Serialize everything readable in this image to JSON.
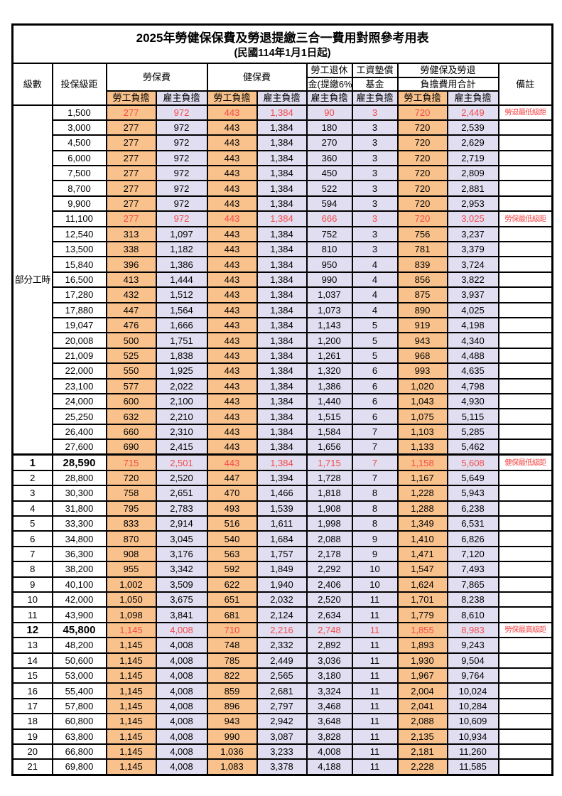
{
  "title": "2025年勞健保保費及勞退提繳三合一費用對照參考用表",
  "subtitle": "(民國114年1月1日起)",
  "colors": {
    "employee_bg": "#F9C28C",
    "employer_bg": "#E0DEF0",
    "highlight_red": "#F64A4A",
    "border": "#000000"
  },
  "header": {
    "level": "級數",
    "bracket": "投保級距",
    "labor_insurance": "勞保費",
    "health_insurance": "健保費",
    "pension_line1": "勞工退休",
    "pension_line2": "金(提繳6%)",
    "wage_fund_line1": "工資墊償",
    "wage_fund_line2": "基金",
    "total_line1": "勞健保及勞退",
    "total_line2": "負擔費用合計",
    "remark": "備註",
    "employee": "勞工負擔",
    "employer": "雇主負擔"
  },
  "part_time_label": "部分工時",
  "rows": [
    {
      "level": "",
      "bracket": "1,500",
      "labor_emp": "277",
      "labor_er": "972",
      "health_emp": "443",
      "health_er": "1,384",
      "pension_er": "90",
      "fund_er": "3",
      "total_emp": "720",
      "total_er": "2,449",
      "remark": "勞退最低級距",
      "red": true
    },
    {
      "level": "",
      "bracket": "3,000",
      "labor_emp": "277",
      "labor_er": "972",
      "health_emp": "443",
      "health_er": "1,384",
      "pension_er": "180",
      "fund_er": "3",
      "total_emp": "720",
      "total_er": "2,539",
      "remark": ""
    },
    {
      "level": "",
      "bracket": "4,500",
      "labor_emp": "277",
      "labor_er": "972",
      "health_emp": "443",
      "health_er": "1,384",
      "pension_er": "270",
      "fund_er": "3",
      "total_emp": "720",
      "total_er": "2,629",
      "remark": ""
    },
    {
      "level": "",
      "bracket": "6,000",
      "labor_emp": "277",
      "labor_er": "972",
      "health_emp": "443",
      "health_er": "1,384",
      "pension_er": "360",
      "fund_er": "3",
      "total_emp": "720",
      "total_er": "2,719",
      "remark": ""
    },
    {
      "level": "",
      "bracket": "7,500",
      "labor_emp": "277",
      "labor_er": "972",
      "health_emp": "443",
      "health_er": "1,384",
      "pension_er": "450",
      "fund_er": "3",
      "total_emp": "720",
      "total_er": "2,809",
      "remark": ""
    },
    {
      "level": "",
      "bracket": "8,700",
      "labor_emp": "277",
      "labor_er": "972",
      "health_emp": "443",
      "health_er": "1,384",
      "pension_er": "522",
      "fund_er": "3",
      "total_emp": "720",
      "total_er": "2,881",
      "remark": ""
    },
    {
      "level": "",
      "bracket": "9,900",
      "labor_emp": "277",
      "labor_er": "972",
      "health_emp": "443",
      "health_er": "1,384",
      "pension_er": "594",
      "fund_er": "3",
      "total_emp": "720",
      "total_er": "2,953",
      "remark": ""
    },
    {
      "level": "",
      "bracket": "11,100",
      "labor_emp": "277",
      "labor_er": "972",
      "health_emp": "443",
      "health_er": "1,384",
      "pension_er": "666",
      "fund_er": "3",
      "total_emp": "720",
      "total_er": "3,025",
      "remark": "勞保最低級距",
      "red": true
    },
    {
      "level": "",
      "bracket": "12,540",
      "labor_emp": "313",
      "labor_er": "1,097",
      "health_emp": "443",
      "health_er": "1,384",
      "pension_er": "752",
      "fund_er": "3",
      "total_emp": "756",
      "total_er": "3,237",
      "remark": ""
    },
    {
      "level": "",
      "bracket": "13,500",
      "labor_emp": "338",
      "labor_er": "1,182",
      "health_emp": "443",
      "health_er": "1,384",
      "pension_er": "810",
      "fund_er": "3",
      "total_emp": "781",
      "total_er": "3,379",
      "remark": ""
    },
    {
      "level": "",
      "bracket": "15,840",
      "labor_emp": "396",
      "labor_er": "1,386",
      "health_emp": "443",
      "health_er": "1,384",
      "pension_er": "950",
      "fund_er": "4",
      "total_emp": "839",
      "total_er": "3,724",
      "remark": ""
    },
    {
      "level": "",
      "bracket": "16,500",
      "labor_emp": "413",
      "labor_er": "1,444",
      "health_emp": "443",
      "health_er": "1,384",
      "pension_er": "990",
      "fund_er": "4",
      "total_emp": "856",
      "total_er": "3,822",
      "remark": ""
    },
    {
      "level": "",
      "bracket": "17,280",
      "labor_emp": "432",
      "labor_er": "1,512",
      "health_emp": "443",
      "health_er": "1,384",
      "pension_er": "1,037",
      "fund_er": "4",
      "total_emp": "875",
      "total_er": "3,937",
      "remark": ""
    },
    {
      "level": "",
      "bracket": "17,880",
      "labor_emp": "447",
      "labor_er": "1,564",
      "health_emp": "443",
      "health_er": "1,384",
      "pension_er": "1,073",
      "fund_er": "4",
      "total_emp": "890",
      "total_er": "4,025",
      "remark": ""
    },
    {
      "level": "",
      "bracket": "19,047",
      "labor_emp": "476",
      "labor_er": "1,666",
      "health_emp": "443",
      "health_er": "1,384",
      "pension_er": "1,143",
      "fund_er": "5",
      "total_emp": "919",
      "total_er": "4,198",
      "remark": ""
    },
    {
      "level": "",
      "bracket": "20,008",
      "labor_emp": "500",
      "labor_er": "1,751",
      "health_emp": "443",
      "health_er": "1,384",
      "pension_er": "1,200",
      "fund_er": "5",
      "total_emp": "943",
      "total_er": "4,340",
      "remark": ""
    },
    {
      "level": "",
      "bracket": "21,009",
      "labor_emp": "525",
      "labor_er": "1,838",
      "health_emp": "443",
      "health_er": "1,384",
      "pension_er": "1,261",
      "fund_er": "5",
      "total_emp": "968",
      "total_er": "4,488",
      "remark": ""
    },
    {
      "level": "",
      "bracket": "22,000",
      "labor_emp": "550",
      "labor_er": "1,925",
      "health_emp": "443",
      "health_er": "1,384",
      "pension_er": "1,320",
      "fund_er": "6",
      "total_emp": "993",
      "total_er": "4,635",
      "remark": ""
    },
    {
      "level": "",
      "bracket": "23,100",
      "labor_emp": "577",
      "labor_er": "2,022",
      "health_emp": "443",
      "health_er": "1,384",
      "pension_er": "1,386",
      "fund_er": "6",
      "total_emp": "1,020",
      "total_er": "4,798",
      "remark": ""
    },
    {
      "level": "",
      "bracket": "24,000",
      "labor_emp": "600",
      "labor_er": "2,100",
      "health_emp": "443",
      "health_er": "1,384",
      "pension_er": "1,440",
      "fund_er": "6",
      "total_emp": "1,043",
      "total_er": "4,930",
      "remark": ""
    },
    {
      "level": "",
      "bracket": "25,250",
      "labor_emp": "632",
      "labor_er": "2,210",
      "health_emp": "443",
      "health_er": "1,384",
      "pension_er": "1,515",
      "fund_er": "6",
      "total_emp": "1,075",
      "total_er": "5,115",
      "remark": ""
    },
    {
      "level": "",
      "bracket": "26,400",
      "labor_emp": "660",
      "labor_er": "2,310",
      "health_emp": "443",
      "health_er": "1,384",
      "pension_er": "1,584",
      "fund_er": "7",
      "total_emp": "1,103",
      "total_er": "5,285",
      "remark": ""
    },
    {
      "level": "",
      "bracket": "27,600",
      "labor_emp": "690",
      "labor_er": "2,415",
      "health_emp": "443",
      "health_er": "1,384",
      "pension_er": "1,656",
      "fund_er": "7",
      "total_emp": "1,133",
      "total_er": "5,462",
      "remark": ""
    },
    {
      "level": "1",
      "bracket": "28,590",
      "labor_emp": "715",
      "labor_er": "2,501",
      "health_emp": "443",
      "health_er": "1,384",
      "pension_er": "1,715",
      "fund_er": "7",
      "total_emp": "1,158",
      "total_er": "5,608",
      "remark": "健保最低級距",
      "red": true,
      "big": true,
      "section_start": true
    },
    {
      "level": "2",
      "bracket": "28,800",
      "labor_emp": "720",
      "labor_er": "2,520",
      "health_emp": "447",
      "health_er": "1,394",
      "pension_er": "1,728",
      "fund_er": "7",
      "total_emp": "1,167",
      "total_er": "5,649",
      "remark": ""
    },
    {
      "level": "3",
      "bracket": "30,300",
      "labor_emp": "758",
      "labor_er": "2,651",
      "health_emp": "470",
      "health_er": "1,466",
      "pension_er": "1,818",
      "fund_er": "8",
      "total_emp": "1,228",
      "total_er": "5,943",
      "remark": ""
    },
    {
      "level": "4",
      "bracket": "31,800",
      "labor_emp": "795",
      "labor_er": "2,783",
      "health_emp": "493",
      "health_er": "1,539",
      "pension_er": "1,908",
      "fund_er": "8",
      "total_emp": "1,288",
      "total_er": "6,238",
      "remark": ""
    },
    {
      "level": "5",
      "bracket": "33,300",
      "labor_emp": "833",
      "labor_er": "2,914",
      "health_emp": "516",
      "health_er": "1,611",
      "pension_er": "1,998",
      "fund_er": "8",
      "total_emp": "1,349",
      "total_er": "6,531",
      "remark": ""
    },
    {
      "level": "6",
      "bracket": "34,800",
      "labor_emp": "870",
      "labor_er": "3,045",
      "health_emp": "540",
      "health_er": "1,684",
      "pension_er": "2,088",
      "fund_er": "9",
      "total_emp": "1,410",
      "total_er": "6,826",
      "remark": ""
    },
    {
      "level": "7",
      "bracket": "36,300",
      "labor_emp": "908",
      "labor_er": "3,176",
      "health_emp": "563",
      "health_er": "1,757",
      "pension_er": "2,178",
      "fund_er": "9",
      "total_emp": "1,471",
      "total_er": "7,120",
      "remark": ""
    },
    {
      "level": "8",
      "bracket": "38,200",
      "labor_emp": "955",
      "labor_er": "3,342",
      "health_emp": "592",
      "health_er": "1,849",
      "pension_er": "2,292",
      "fund_er": "10",
      "total_emp": "1,547",
      "total_er": "7,493",
      "remark": ""
    },
    {
      "level": "9",
      "bracket": "40,100",
      "labor_emp": "1,002",
      "labor_er": "3,509",
      "health_emp": "622",
      "health_er": "1,940",
      "pension_er": "2,406",
      "fund_er": "10",
      "total_emp": "1,624",
      "total_er": "7,865",
      "remark": ""
    },
    {
      "level": "10",
      "bracket": "42,000",
      "labor_emp": "1,050",
      "labor_er": "3,675",
      "health_emp": "651",
      "health_er": "2,032",
      "pension_er": "2,520",
      "fund_er": "11",
      "total_emp": "1,701",
      "total_er": "8,238",
      "remark": ""
    },
    {
      "level": "11",
      "bracket": "43,900",
      "labor_emp": "1,098",
      "labor_er": "3,841",
      "health_emp": "681",
      "health_er": "2,124",
      "pension_er": "2,634",
      "fund_er": "11",
      "total_emp": "1,779",
      "total_er": "8,610",
      "remark": ""
    },
    {
      "level": "12",
      "bracket": "45,800",
      "labor_emp": "1,145",
      "labor_er": "4,008",
      "health_emp": "710",
      "health_er": "2,216",
      "pension_er": "2,748",
      "fund_er": "11",
      "total_emp": "1,855",
      "total_er": "8,983",
      "remark": "勞保最高級距",
      "red": true,
      "big": true
    },
    {
      "level": "13",
      "bracket": "48,200",
      "labor_emp": "1,145",
      "labor_er": "4,008",
      "health_emp": "748",
      "health_er": "2,332",
      "pension_er": "2,892",
      "fund_er": "11",
      "total_emp": "1,893",
      "total_er": "9,243",
      "remark": ""
    },
    {
      "level": "14",
      "bracket": "50,600",
      "labor_emp": "1,145",
      "labor_er": "4,008",
      "health_emp": "785",
      "health_er": "2,449",
      "pension_er": "3,036",
      "fund_er": "11",
      "total_emp": "1,930",
      "total_er": "9,504",
      "remark": ""
    },
    {
      "level": "15",
      "bracket": "53,000",
      "labor_emp": "1,145",
      "labor_er": "4,008",
      "health_emp": "822",
      "health_er": "2,565",
      "pension_er": "3,180",
      "fund_er": "11",
      "total_emp": "1,967",
      "total_er": "9,764",
      "remark": ""
    },
    {
      "level": "16",
      "bracket": "55,400",
      "labor_emp": "1,145",
      "labor_er": "4,008",
      "health_emp": "859",
      "health_er": "2,681",
      "pension_er": "3,324",
      "fund_er": "11",
      "total_emp": "2,004",
      "total_er": "10,024",
      "remark": ""
    },
    {
      "level": "17",
      "bracket": "57,800",
      "labor_emp": "1,145",
      "labor_er": "4,008",
      "health_emp": "896",
      "health_er": "2,797",
      "pension_er": "3,468",
      "fund_er": "11",
      "total_emp": "2,041",
      "total_er": "10,284",
      "remark": ""
    },
    {
      "level": "18",
      "bracket": "60,800",
      "labor_emp": "1,145",
      "labor_er": "4,008",
      "health_emp": "943",
      "health_er": "2,942",
      "pension_er": "3,648",
      "fund_er": "11",
      "total_emp": "2,088",
      "total_er": "10,609",
      "remark": ""
    },
    {
      "level": "19",
      "bracket": "63,800",
      "labor_emp": "1,145",
      "labor_er": "4,008",
      "health_emp": "990",
      "health_er": "3,087",
      "pension_er": "3,828",
      "fund_er": "11",
      "total_emp": "2,135",
      "total_er": "10,934",
      "remark": ""
    },
    {
      "level": "20",
      "bracket": "66,800",
      "labor_emp": "1,145",
      "labor_er": "4,008",
      "health_emp": "1,036",
      "health_er": "3,233",
      "pension_er": "4,008",
      "fund_er": "11",
      "total_emp": "2,181",
      "total_er": "11,260",
      "remark": ""
    },
    {
      "level": "21",
      "bracket": "69,800",
      "labor_emp": "1,145",
      "labor_er": "4,008",
      "health_emp": "1,083",
      "health_er": "3,378",
      "pension_er": "4,188",
      "fund_er": "11",
      "total_emp": "2,228",
      "total_er": "11,585",
      "remark": ""
    }
  ]
}
